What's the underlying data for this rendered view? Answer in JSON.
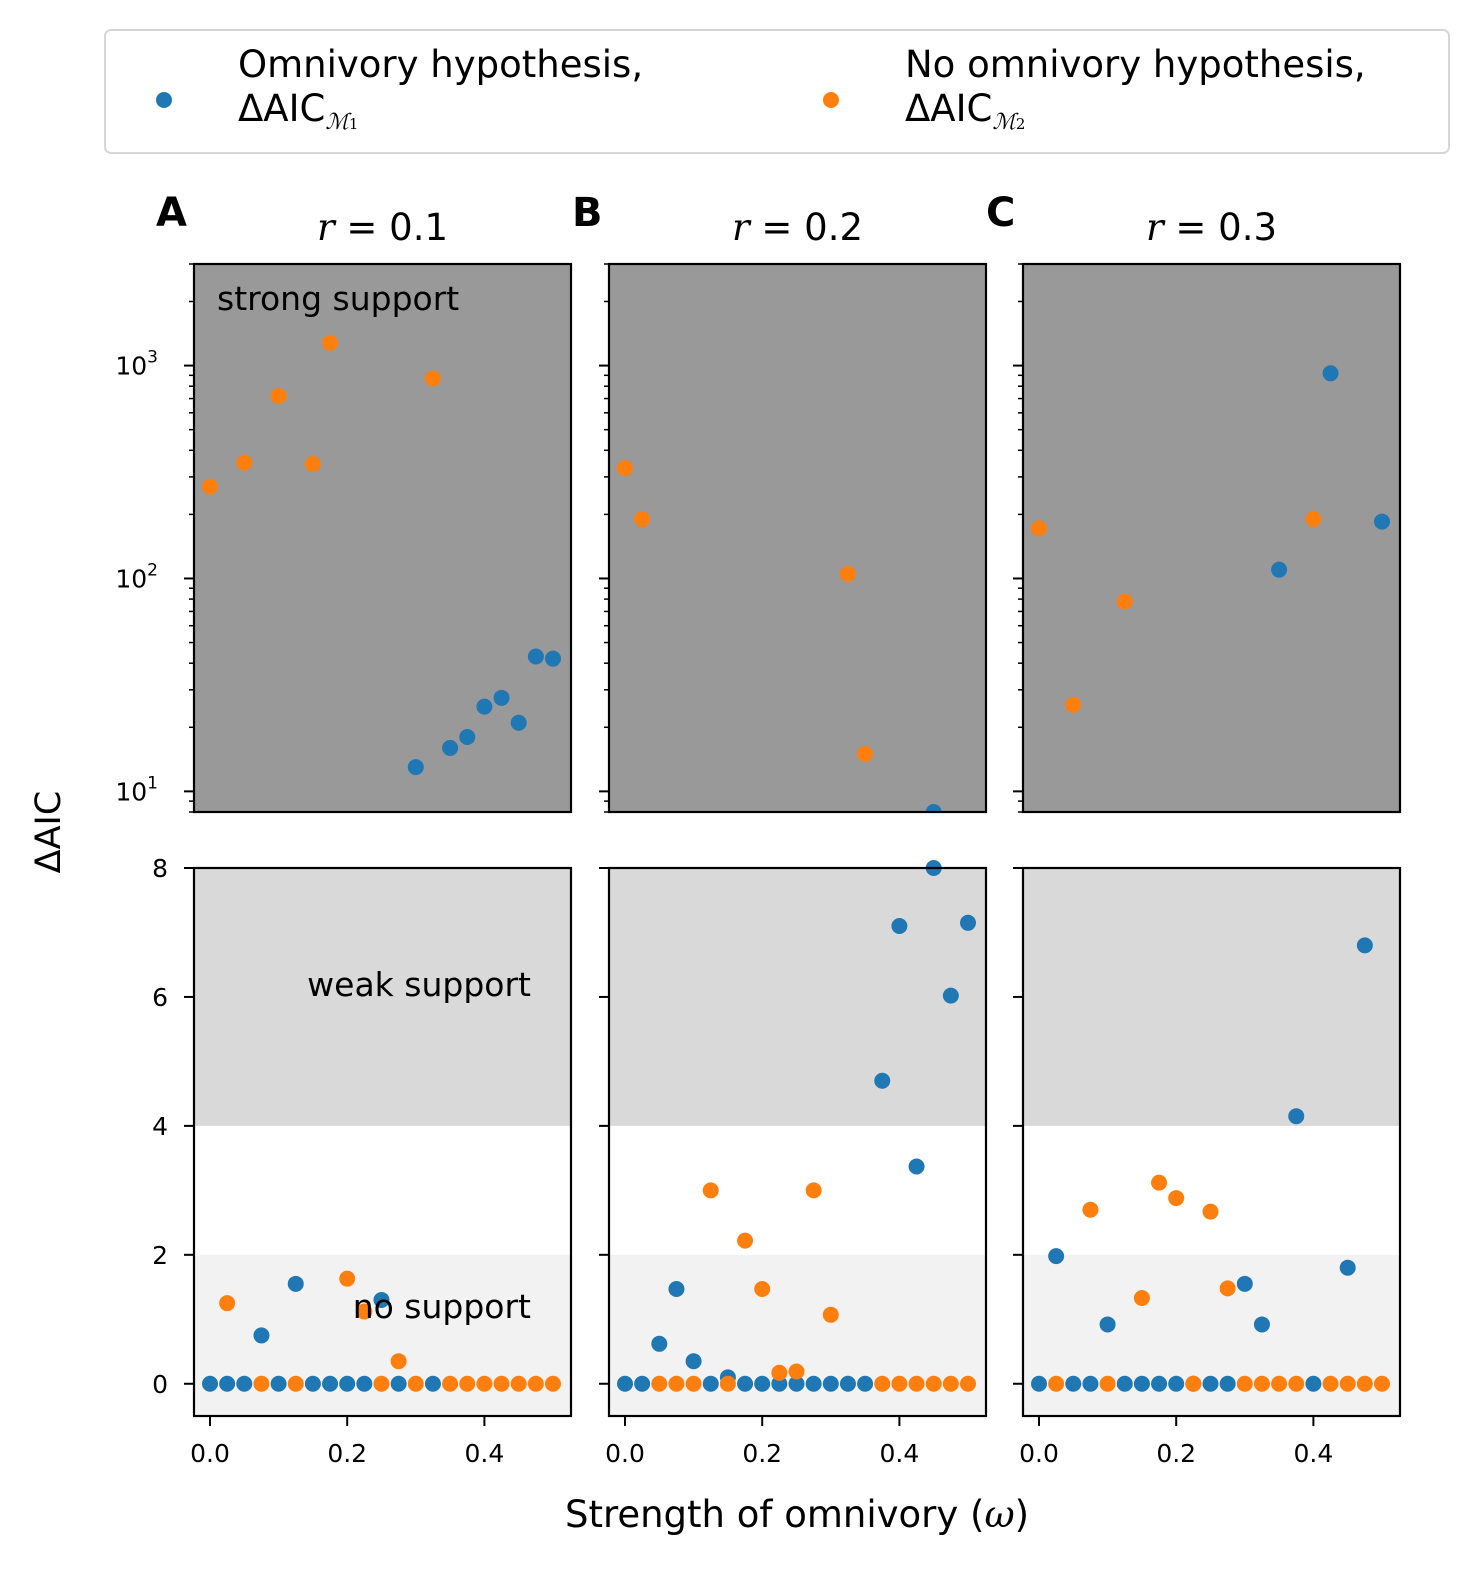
{
  "legend": {
    "items": [
      {
        "line1": "Omnivory hypothesis,",
        "line2": "ΔAIC",
        "sub": "ℳ",
        "subnum": "1",
        "color": "#1f77b4"
      },
      {
        "line1": "No omnivory hypothesis,",
        "line2": "ΔAIC",
        "sub": "ℳ",
        "subnum": "2",
        "color": "#ff7f0e"
      }
    ]
  },
  "labels": {
    "ylabel": "ΔAIC",
    "xlabel_main": "Strength of omnivory (",
    "xlabel_sym": "ω",
    "xlabel_end": ")",
    "region_strong": "strong support",
    "region_weak": "weak support",
    "region_none": "no support"
  },
  "colors": {
    "m1": "#1f77b4",
    "m2": "#ff7f0e",
    "strong_bg": "#999999",
    "weak_bg": "#d9d9d9",
    "none_bg": "#f2f2f2"
  },
  "chart_data": [
    {
      "type": "scatter",
      "panel": "A",
      "title_sym": "r",
      "title_eq": " = 0.1",
      "xlabel": "Strength of omnivory (ω)",
      "ylabel": "ΔAIC",
      "xticks": [
        "0.0",
        "0.2",
        "0.4"
      ],
      "ylim_top_log": [
        8,
        3000
      ],
      "yticks_top": [
        {
          "base": "10",
          "exp": "1"
        },
        {
          "base": "10",
          "exp": "2"
        },
        {
          "base": "10",
          "exp": "3"
        }
      ],
      "ylim_bottom": [
        -0.5,
        8
      ],
      "yticks_bottom": [
        "0",
        "2",
        "4",
        "6",
        "8"
      ],
      "series": [
        {
          "name": "Omnivory hypothesis, ΔAIC_M1",
          "x": [
            0.0,
            0.025,
            0.05,
            0.075,
            0.1,
            0.125,
            0.15,
            0.175,
            0.2,
            0.225,
            0.25,
            0.275,
            0.3,
            0.325,
            0.35,
            0.375,
            0.4,
            0.425,
            0.45,
            0.475,
            0.5
          ],
          "y": [
            0,
            0,
            0,
            0.75,
            0,
            1.55,
            0,
            0,
            0,
            0,
            1.3,
            0,
            13,
            0,
            16,
            18,
            25,
            27.5,
            21,
            43,
            42
          ]
        },
        {
          "name": "No omnivory hypothesis, ΔAIC_M2",
          "x": [
            0.0,
            0.025,
            0.05,
            0.075,
            0.1,
            0.125,
            0.15,
            0.175,
            0.2,
            0.225,
            0.25,
            0.275,
            0.3,
            0.325,
            0.35,
            0.375,
            0.4,
            0.425,
            0.45,
            0.475,
            0.5
          ],
          "y": [
            270,
            1.25,
            350,
            0,
            720,
            0,
            345,
            1280,
            1.63,
            1.12,
            0,
            0.35,
            0,
            870,
            0,
            0,
            0,
            0,
            0,
            0,
            0
          ]
        }
      ]
    },
    {
      "type": "scatter",
      "panel": "B",
      "title_sym": "r",
      "title_eq": " = 0.2",
      "xlabel": "Strength of omnivory (ω)",
      "ylabel": "ΔAIC",
      "xticks": [
        "0.0",
        "0.2",
        "0.4"
      ],
      "ylim_top_log": [
        8,
        3000
      ],
      "ylim_bottom": [
        -0.5,
        8
      ],
      "series": [
        {
          "name": "Omnivory hypothesis, ΔAIC_M1",
          "x": [
            0.0,
            0.025,
            0.05,
            0.075,
            0.1,
            0.125,
            0.15,
            0.175,
            0.2,
            0.225,
            0.25,
            0.275,
            0.3,
            0.325,
            0.35,
            0.375,
            0.4,
            0.425,
            0.45,
            0.475,
            0.5
          ],
          "y": [
            0,
            0,
            0.62,
            1.47,
            0.35,
            0,
            0.1,
            0,
            0,
            0,
            0,
            0,
            0,
            0,
            0,
            4.7,
            7.1,
            3.37,
            8,
            6.02,
            7.15
          ]
        },
        {
          "name": "No omnivory hypothesis, ΔAIC_M2",
          "x": [
            0.0,
            0.025,
            0.05,
            0.075,
            0.1,
            0.125,
            0.15,
            0.175,
            0.2,
            0.225,
            0.25,
            0.275,
            0.3,
            0.325,
            0.35,
            0.375,
            0.4,
            0.425,
            0.45,
            0.475,
            0.5
          ],
          "y": [
            330,
            190,
            0,
            0,
            0,
            3.0,
            0,
            2.22,
            1.47,
            0.17,
            0.19,
            3.0,
            1.07,
            105,
            15,
            0,
            0,
            0,
            0,
            0,
            0
          ]
        }
      ]
    },
    {
      "type": "scatter",
      "panel": "C",
      "title_sym": "r",
      "title_eq": " = 0.3",
      "xlabel": "Strength of omnivory (ω)",
      "ylabel": "ΔAIC",
      "xticks": [
        "0.0",
        "0.2",
        "0.4"
      ],
      "ylim_top_log": [
        8,
        3000
      ],
      "ylim_bottom": [
        -0.5,
        8
      ],
      "series": [
        {
          "name": "Omnivory hypothesis, ΔAIC_M1",
          "x": [
            0.0,
            0.025,
            0.05,
            0.075,
            0.1,
            0.125,
            0.15,
            0.175,
            0.2,
            0.225,
            0.25,
            0.275,
            0.3,
            0.325,
            0.35,
            0.375,
            0.4,
            0.425,
            0.45,
            0.475,
            0.5
          ],
          "y": [
            0,
            1.98,
            0,
            0,
            0.92,
            0,
            0,
            0,
            0,
            0,
            0,
            0,
            1.55,
            0.92,
            110,
            4.15,
            0,
            920,
            1.8,
            6.8,
            185
          ]
        },
        {
          "name": "No omnivory hypothesis, ΔAIC_M2",
          "x": [
            0.0,
            0.025,
            0.05,
            0.075,
            0.1,
            0.125,
            0.15,
            0.175,
            0.2,
            0.225,
            0.25,
            0.275,
            0.3,
            0.325,
            0.35,
            0.375,
            0.4,
            0.425,
            0.45,
            0.475,
            0.5
          ],
          "y": [
            172,
            0,
            25.5,
            2.7,
            0,
            78,
            1.33,
            3.12,
            2.88,
            0,
            2.67,
            1.48,
            0,
            0,
            0,
            0,
            190,
            0,
            0,
            0,
            0
          ]
        }
      ]
    }
  ]
}
